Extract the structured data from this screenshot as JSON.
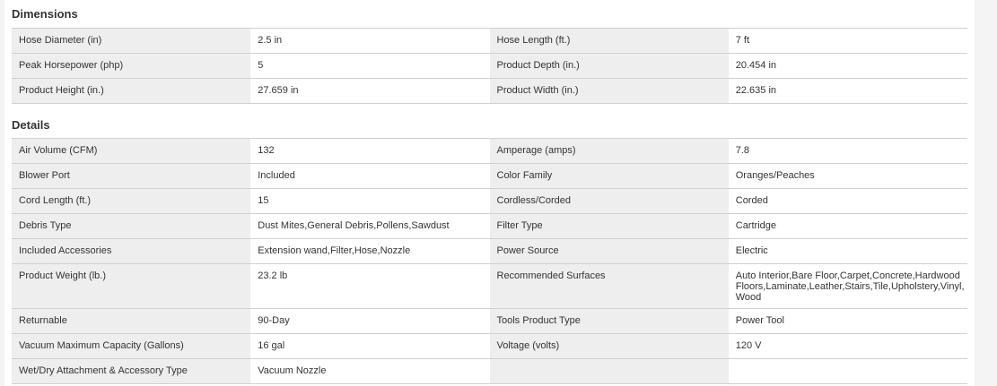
{
  "dimensions": {
    "title": "Dimensions",
    "rows": [
      [
        "Hose Diameter (in)",
        "2.5 in",
        "Hose Length (ft.)",
        "7 ft"
      ],
      [
        "Peak Horsepower (php)",
        "5",
        "Product Depth (in.)",
        "20.454 in"
      ],
      [
        "Product Height (in.)",
        "27.659 in",
        "Product Width (in.)",
        "22.635 in"
      ]
    ]
  },
  "details": {
    "title": "Details",
    "rows": [
      [
        "Air Volume (CFM)",
        "132",
        "Amperage (amps)",
        "7.8"
      ],
      [
        "Blower Port",
        "Included",
        "Color Family",
        "Oranges/Peaches"
      ],
      [
        "Cord Length (ft.)",
        "15",
        "Cordless/Corded",
        "Corded"
      ],
      [
        "Debris Type",
        "Dust Mites,General Debris,Pollens,Sawdust",
        "Filter Type",
        "Cartridge"
      ],
      [
        "Included Accessories",
        "Extension wand,Filter,Hose,Nozzle",
        "Power Source",
        "Electric"
      ],
      [
        "Product Weight (lb.)",
        "23.2 lb",
        "Recommended Surfaces",
        "Auto Interior,Bare Floor,Carpet,Concrete,Hardwood Floors,Laminate,Leather,Stairs,Tile,Upholstery,Vinyl, Wood"
      ],
      [
        "Returnable",
        "90-Day",
        "Tools Product Type",
        "Power Tool"
      ],
      [
        "Vacuum Maximum Capacity (Gallons)",
        "16 gal",
        "Voltage (volts)",
        "120 V"
      ],
      [
        "Wet/Dry Attachment & Accessory Type",
        "Vacuum Nozzle",
        "",
        ""
      ]
    ]
  }
}
